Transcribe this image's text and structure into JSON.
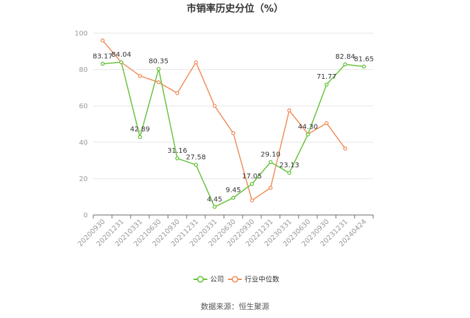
{
  "chart_data": {
    "type": "line",
    "title": "市销率历史分位（%）",
    "categories": [
      "20200930",
      "20201231",
      "20210331",
      "20210630",
      "20210930",
      "20211231",
      "20220331",
      "20220630",
      "20220930",
      "20221231",
      "20230331",
      "20230630",
      "20230930",
      "20231231",
      "20240424"
    ],
    "series": [
      {
        "name": "公司",
        "color": "#66c23a",
        "values": [
          83.17,
          84.04,
          42.89,
          80.35,
          31.16,
          27.58,
          4.45,
          9.45,
          17.05,
          29.1,
          23.13,
          44.3,
          71.77,
          82.84,
          81.65
        ],
        "labels": [
          "83.17",
          "84.04",
          "42.89",
          "80.35",
          "31.16",
          "27.58",
          "4.45",
          "9.45",
          "17.05",
          "29.10",
          "23.13",
          "44.30",
          "71.77",
          "82.84",
          "81.65"
        ]
      },
      {
        "name": "行业中位数",
        "color": "#f28c5a",
        "values": [
          96,
          84,
          76.5,
          73,
          67,
          84,
          60,
          45,
          8,
          15,
          57.5,
          44.5,
          50.5,
          36.5,
          null
        ]
      }
    ],
    "ylim": [
      0,
      100
    ],
    "yticks": [
      "0",
      "20",
      "40",
      "60",
      "80",
      "100"
    ],
    "legend": "bottom-center",
    "grid": true
  },
  "source": "数据来源：恒生聚源"
}
